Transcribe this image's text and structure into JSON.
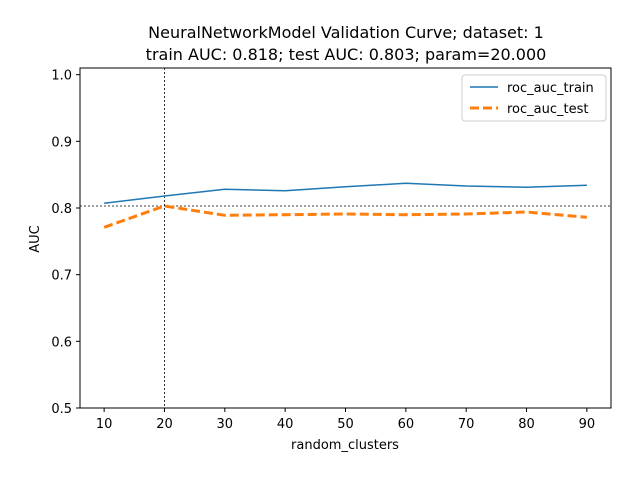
{
  "chart_data": {
    "type": "line",
    "title_line1": "NeuralNetworkModel Validation Curve; dataset: 1",
    "title_line2": "train AUC: 0.818; test AUC: 0.803; param=20.000",
    "xlabel": "random_clusters",
    "ylabel": "AUC",
    "x": [
      10,
      20,
      30,
      40,
      50,
      60,
      70,
      80,
      90
    ],
    "xticks": [
      10,
      20,
      30,
      40,
      50,
      60,
      70,
      80,
      90
    ],
    "yticks": [
      0.5,
      0.6,
      0.7,
      0.8,
      0.9,
      1.0
    ],
    "ytick_labels": [
      "0.5",
      "0.6",
      "0.7",
      "0.8",
      "0.9",
      "1.0"
    ],
    "xlim": [
      6,
      94
    ],
    "ylim": [
      0.5,
      1.01
    ],
    "legend_position": "top-right",
    "series": [
      {
        "name": "roc_auc_train",
        "color": "#1f77b4",
        "style": "solid",
        "values": [
          0.807,
          0.818,
          0.828,
          0.826,
          0.832,
          0.837,
          0.833,
          0.831,
          0.834
        ]
      },
      {
        "name": "roc_auc_test",
        "color": "#ff7f0e",
        "style": "dashed",
        "values": [
          0.771,
          0.803,
          0.789,
          0.79,
          0.791,
          0.79,
          0.791,
          0.794,
          0.786
        ]
      }
    ],
    "reference_lines": {
      "vertical_x": 20,
      "horizontal_y": 0.803
    },
    "grid": false
  }
}
